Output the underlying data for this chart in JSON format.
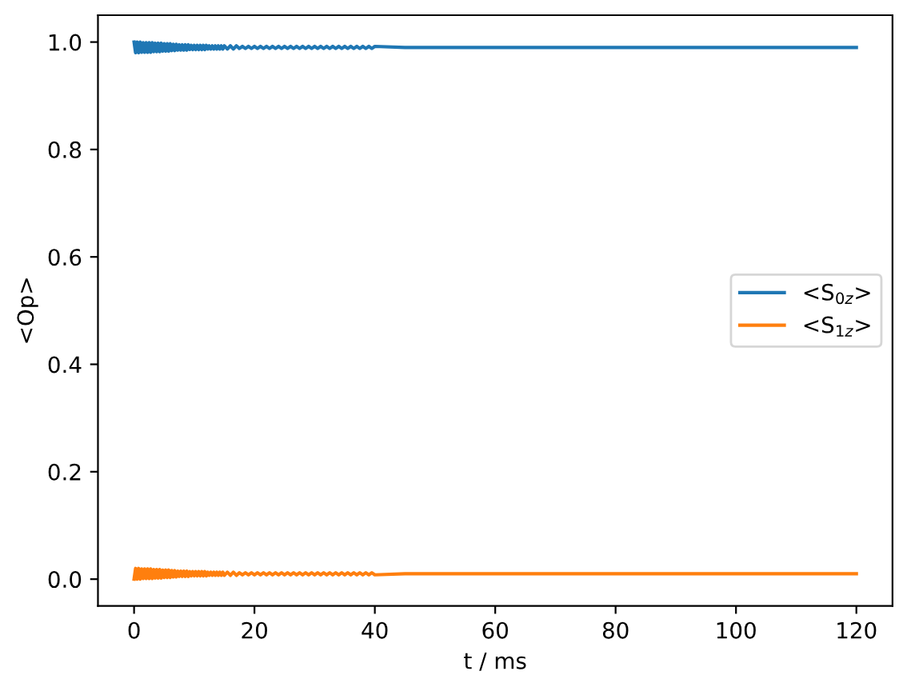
{
  "chart_data": {
    "type": "line",
    "xlabel": "t / ms",
    "ylabel": "<Op>",
    "x": [
      0,
      0.25,
      0.5,
      0.75,
      1,
      1.25,
      1.5,
      1.75,
      2,
      2.25,
      2.5,
      2.75,
      3,
      3.25,
      3.5,
      3.75,
      4,
      4.25,
      4.5,
      4.75,
      5,
      5.25,
      5.5,
      5.75,
      6,
      6.25,
      6.5,
      6.75,
      7,
      7.25,
      7.5,
      7.75,
      8,
      8.25,
      8.5,
      8.75,
      9,
      9.25,
      9.5,
      9.75,
      10,
      10.25,
      10.5,
      10.75,
      11,
      11.25,
      11.5,
      11.75,
      12,
      12.25,
      12.5,
      12.75,
      13,
      13.25,
      13.5,
      13.75,
      14,
      14.25,
      14.5,
      14.75,
      15,
      15.5,
      16,
      16.5,
      17,
      17.5,
      18,
      18.5,
      19,
      19.5,
      20,
      20.5,
      21,
      21.5,
      22,
      22.5,
      23,
      23.5,
      24,
      24.5,
      25,
      25.5,
      26,
      26.5,
      27,
      27.5,
      28,
      28.5,
      29,
      29.5,
      30,
      30.5,
      31,
      31.5,
      32,
      32.5,
      33,
      33.5,
      34,
      34.5,
      35,
      35.5,
      36,
      36.5,
      37,
      37.5,
      38,
      38.5,
      39,
      39.5,
      40,
      45,
      50,
      55,
      60,
      65,
      70,
      75,
      80,
      85,
      90,
      95,
      100,
      105,
      110,
      115,
      120
    ],
    "series": [
      {
        "name": "<S$_{0z}$>",
        "color": "#1f77b4",
        "values": [
          1.0,
          0.98,
          1.0,
          0.98,
          1.0,
          0.981,
          0.999,
          0.981,
          0.999,
          0.981,
          0.999,
          0.981,
          0.999,
          0.982,
          0.998,
          0.982,
          0.998,
          0.982,
          0.998,
          0.983,
          0.997,
          0.983,
          0.997,
          0.983,
          0.997,
          0.984,
          0.996,
          0.984,
          0.996,
          0.985,
          0.995,
          0.985,
          0.995,
          0.985,
          0.995,
          0.985,
          0.995,
          0.986,
          0.994,
          0.986,
          0.994,
          0.986,
          0.994,
          0.986,
          0.994,
          0.986,
          0.994,
          0.986,
          0.994,
          0.987,
          0.993,
          0.987,
          0.993,
          0.987,
          0.993,
          0.987,
          0.993,
          0.987,
          0.993,
          0.987,
          0.993,
          0.987,
          0.993,
          0.987,
          0.993,
          0.988,
          0.992,
          0.988,
          0.992,
          0.988,
          0.992,
          0.988,
          0.992,
          0.988,
          0.992,
          0.988,
          0.992,
          0.988,
          0.992,
          0.988,
          0.992,
          0.988,
          0.992,
          0.988,
          0.992,
          0.988,
          0.992,
          0.988,
          0.992,
          0.988,
          0.992,
          0.988,
          0.992,
          0.988,
          0.992,
          0.988,
          0.992,
          0.988,
          0.992,
          0.988,
          0.992,
          0.988,
          0.992,
          0.988,
          0.992,
          0.988,
          0.992,
          0.988,
          0.992,
          0.988,
          0.992,
          0.99,
          0.99,
          0.99,
          0.99,
          0.99,
          0.99,
          0.99,
          0.99,
          0.99,
          0.99,
          0.99,
          0.99,
          0.99,
          0.99,
          0.99,
          0.99
        ]
      },
      {
        "name": "<S$_{1z}$>",
        "color": "#ff7f0e",
        "values": [
          0.0,
          0.02,
          0.0,
          0.02,
          0.0,
          0.019,
          0.001,
          0.019,
          0.001,
          0.019,
          0.001,
          0.019,
          0.001,
          0.018,
          0.002,
          0.018,
          0.002,
          0.018,
          0.002,
          0.017,
          0.003,
          0.017,
          0.003,
          0.017,
          0.003,
          0.016,
          0.004,
          0.016,
          0.004,
          0.015,
          0.005,
          0.015,
          0.005,
          0.015,
          0.005,
          0.015,
          0.005,
          0.014,
          0.006,
          0.014,
          0.006,
          0.014,
          0.006,
          0.014,
          0.006,
          0.014,
          0.006,
          0.014,
          0.006,
          0.013,
          0.007,
          0.013,
          0.007,
          0.013,
          0.007,
          0.013,
          0.007,
          0.013,
          0.007,
          0.013,
          0.007,
          0.013,
          0.007,
          0.013,
          0.007,
          0.012,
          0.008,
          0.012,
          0.008,
          0.012,
          0.008,
          0.012,
          0.008,
          0.012,
          0.008,
          0.012,
          0.008,
          0.012,
          0.008,
          0.012,
          0.008,
          0.012,
          0.008,
          0.012,
          0.008,
          0.012,
          0.008,
          0.012,
          0.008,
          0.012,
          0.008,
          0.012,
          0.008,
          0.012,
          0.008,
          0.012,
          0.008,
          0.012,
          0.008,
          0.012,
          0.008,
          0.012,
          0.008,
          0.012,
          0.008,
          0.012,
          0.008,
          0.012,
          0.008,
          0.012,
          0.008,
          0.01,
          0.01,
          0.01,
          0.01,
          0.01,
          0.01,
          0.01,
          0.01,
          0.01,
          0.01,
          0.01,
          0.01,
          0.01,
          0.01,
          0.01,
          0.01
        ]
      }
    ],
    "xlim": [
      -6,
      126
    ],
    "xticks": [
      0,
      20,
      40,
      60,
      80,
      100,
      120
    ],
    "ylim": [
      -0.05,
      1.05
    ],
    "yticks": [
      {
        "value": 0,
        "label": "0.0"
      },
      0.2,
      0.4,
      0.6,
      0.8,
      {
        "value": 1,
        "label": "1.0"
      }
    ],
    "legend": "right",
    "line_style": "solid"
  }
}
